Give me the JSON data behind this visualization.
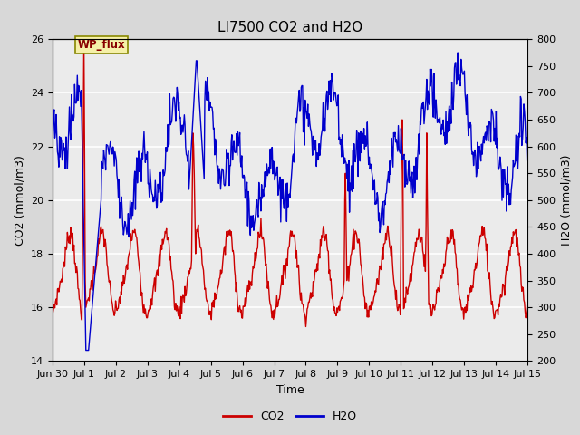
{
  "title": "LI7500 CO2 and H2O",
  "xlabel": "Time",
  "ylabel_left": "CO2 (mmol/m3)",
  "ylabel_right": "H2O (mmol/m3)",
  "ylim_left": [
    14,
    26
  ],
  "ylim_right": [
    200,
    800
  ],
  "yticks_left": [
    14,
    16,
    18,
    20,
    22,
    24,
    26
  ],
  "yticks_right": [
    200,
    250,
    300,
    350,
    400,
    450,
    500,
    550,
    600,
    650,
    700,
    750,
    800
  ],
  "xtick_labels": [
    "Jun 30",
    "Jul 1",
    "Jul 2",
    "Jul 3",
    "Jul 4",
    "Jul 5",
    "Jul 6",
    "Jul 7",
    "Jul 8",
    "Jul 9",
    "Jul 10",
    "Jul 11",
    "Jul 12",
    "Jul 13",
    "Jul 14",
    "Jul 15"
  ],
  "co2_color": "#cc0000",
  "h2o_color": "#0000cc",
  "annotation_text": "WP_flux",
  "bg_color": "#d8d8d8",
  "plot_bg_color": "#ebebeb",
  "grid_color": "#ffffff",
  "title_fontsize": 11,
  "axis_fontsize": 9,
  "tick_fontsize": 8,
  "legend_fontsize": 9,
  "linewidth": 1.0
}
